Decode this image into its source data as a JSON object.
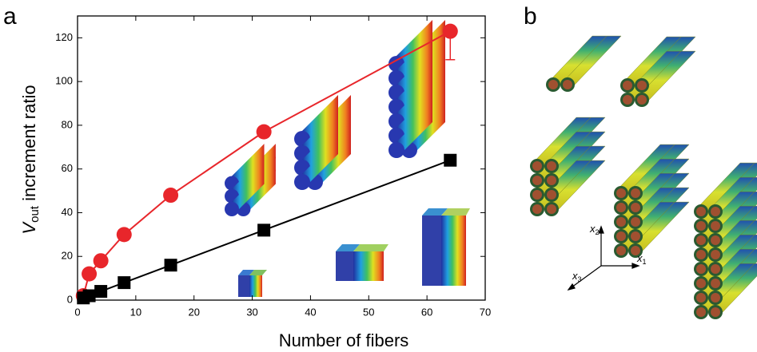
{
  "panels": {
    "a": "a",
    "b": "b"
  },
  "chart_data": {
    "type": "line",
    "x_label": "Number of fibers",
    "y_label": {
      "symbol": "V",
      "subscript": "out",
      "text": " increment ratio"
    },
    "x": [
      1,
      2,
      4,
      8,
      16,
      32,
      64
    ],
    "series": [
      {
        "color": "#e8262b",
        "marker": "circle",
        "values": [
          2,
          12,
          18,
          30,
          48,
          77,
          123
        ],
        "errors": [
          null,
          null,
          null,
          null,
          null,
          null,
          13
        ]
      },
      {
        "color": "#000000",
        "marker": "square",
        "values": [
          1,
          2,
          4,
          8,
          16,
          32,
          64
        ]
      }
    ],
    "xlim": [
      0,
      70
    ],
    "xticks": [
      0,
      10,
      20,
      30,
      40,
      50,
      60,
      70
    ],
    "ylim": [
      0,
      130
    ],
    "yticks": [
      0,
      20,
      40,
      60,
      80,
      100,
      120
    ]
  },
  "panel_b": {
    "axes": [
      {
        "symbol": "x",
        "subscript": "1"
      },
      {
        "symbol": "x",
        "subscript": "2"
      },
      {
        "symbol": "x",
        "subscript": "3"
      }
    ]
  }
}
